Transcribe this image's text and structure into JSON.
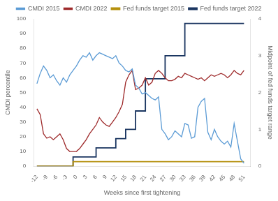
{
  "chart_data": {
    "type": "line",
    "xlabel": "Weeks since first tightening",
    "ylabel": "CMDI percentile",
    "y2label": "Midpoint of fed funds target range",
    "xlim": [
      -13,
      53
    ],
    "xticks": [
      -12,
      -9,
      -6,
      -3,
      0,
      3,
      6,
      9,
      12,
      15,
      18,
      21,
      24,
      27,
      30,
      33,
      36,
      39,
      42,
      45,
      48,
      51
    ],
    "ylim": [
      0,
      100
    ],
    "yticks": [
      0,
      10,
      20,
      30,
      40,
      50,
      60,
      70,
      80,
      90,
      100
    ],
    "y2lim": [
      0,
      4
    ],
    "y2ticks": [
      0,
      1,
      2,
      3,
      4
    ],
    "grid": false,
    "legend": "top",
    "series": [
      {
        "name": "CMDI 2015",
        "color": "#5b9bd5",
        "axis": "y",
        "x": [
          -12,
          -11,
          -10,
          -9,
          -8,
          -7,
          -6,
          -5,
          -4,
          -3,
          -2,
          -1,
          0,
          1,
          2,
          3,
          4,
          5,
          6,
          7,
          8,
          9,
          10,
          11,
          12,
          13,
          14,
          15,
          16,
          17,
          18,
          19,
          20,
          21,
          22,
          23,
          24,
          25,
          26,
          27,
          28,
          29,
          30,
          31,
          32,
          33,
          34,
          35,
          36,
          37,
          38,
          39,
          40,
          41,
          42,
          43,
          44,
          45,
          46,
          47,
          48,
          49,
          50,
          51
        ],
        "values": [
          56,
          63,
          68,
          65,
          60,
          62,
          58,
          55,
          60,
          57,
          62,
          65,
          68,
          72,
          75,
          74,
          77,
          72,
          75,
          77,
          76,
          75,
          74,
          73,
          75,
          70,
          68,
          65,
          64,
          66,
          55,
          53,
          49,
          50,
          48,
          46,
          45,
          47,
          25,
          22,
          18,
          20,
          24,
          22,
          20,
          29,
          28,
          19,
          20,
          40,
          44,
          46,
          23,
          18,
          25,
          20,
          17,
          15,
          17,
          13,
          29,
          17,
          5,
          2
        ]
      },
      {
        "name": "CMDI 2022",
        "color": "#9e2a2b",
        "axis": "y",
        "x": [
          -12,
          -11,
          -10,
          -9,
          -8,
          -7,
          -6,
          -5,
          -4,
          -3,
          -2,
          -1,
          0,
          1,
          2,
          3,
          4,
          5,
          6,
          7,
          8,
          9,
          10,
          11,
          12,
          13,
          14,
          15,
          16,
          17,
          18,
          19,
          20,
          21,
          22,
          23,
          24,
          25,
          26,
          27,
          28,
          29,
          30,
          31,
          32,
          33,
          34,
          35,
          36,
          37,
          38,
          39,
          40,
          41,
          42,
          43,
          44,
          45,
          46,
          47,
          48,
          49,
          50,
          51
        ],
        "values": [
          39,
          35,
          22,
          19,
          20,
          18,
          20,
          22,
          18,
          12,
          10,
          10,
          10,
          12,
          15,
          18,
          22,
          25,
          28,
          33,
          30,
          28,
          27,
          30,
          33,
          37,
          42,
          57,
          62,
          65,
          52,
          53,
          55,
          60,
          55,
          57,
          63,
          65,
          63,
          60,
          58,
          58,
          59,
          61,
          60,
          63,
          62,
          61,
          60,
          59,
          60,
          58,
          60,
          62,
          61,
          62,
          63,
          62,
          60,
          62,
          65,
          63,
          62,
          65
        ]
      },
      {
        "name": "Fed funds target 2015",
        "color": "#b5900c",
        "axis": "y2",
        "type": "step",
        "x": [
          -12,
          -1,
          0,
          51
        ],
        "values": [
          0.0,
          0.0,
          0.125,
          0.125
        ]
      },
      {
        "name": "Fed funds target 2022",
        "color": "#1a3560",
        "axis": "y2",
        "type": "step",
        "x": [
          -12,
          -1,
          0,
          6,
          7,
          12,
          13,
          15,
          16,
          18,
          19,
          21,
          22,
          27,
          28,
          33,
          34,
          36,
          51
        ],
        "values": [
          0.0,
          0.0,
          0.25,
          0.25,
          0.5,
          0.5,
          0.75,
          0.75,
          1.0,
          1.0,
          1.5,
          1.5,
          2.375,
          2.375,
          3.0,
          3.0,
          3.875,
          3.875,
          3.875
        ]
      }
    ]
  }
}
